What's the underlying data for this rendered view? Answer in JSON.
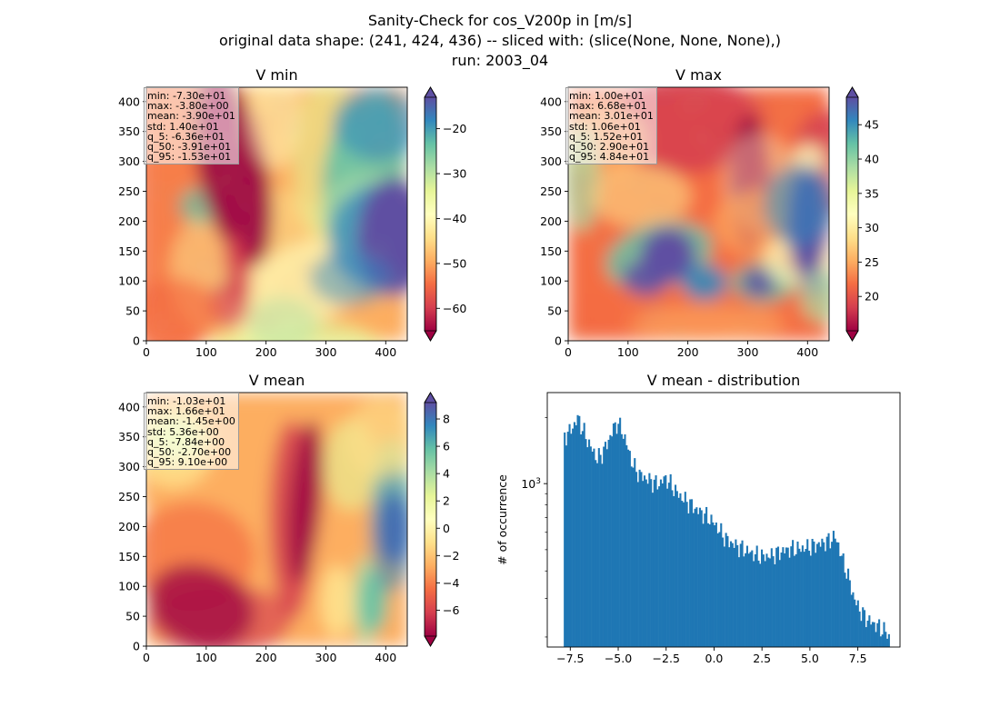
{
  "figure": {
    "title_lines": [
      "Sanity-Check for cos_V200p in [m/s]",
      "original data shape: (241, 424, 436) -- sliced with: (slice(None, None, None),)",
      "run: 2003_04"
    ]
  },
  "colormap": "Spectral",
  "chart_data": [
    {
      "type": "heatmap",
      "title": "V min",
      "xlim": [
        0,
        436
      ],
      "ylim": [
        0,
        424
      ],
      "xticks": [
        0,
        100,
        200,
        300,
        400
      ],
      "yticks": [
        0,
        50,
        100,
        150,
        200,
        250,
        300,
        350,
        400
      ],
      "colorbar": {
        "range": [
          -65,
          -13
        ],
        "ticks": [
          -60,
          -50,
          -40,
          -30,
          -20
        ],
        "extend": "both"
      },
      "stats": [
        "min: -7.30e+01",
        "max: -3.80e+00",
        "mean: -3.90e+01",
        "std: 1.40e+01",
        "q_5: -6.36e+01",
        "q_50: -3.91e+01",
        "q_95: -1.53e+01"
      ]
    },
    {
      "type": "heatmap",
      "title": "V max",
      "xlim": [
        0,
        436
      ],
      "ylim": [
        0,
        424
      ],
      "xticks": [
        0,
        100,
        200,
        300,
        400
      ],
      "yticks": [
        0,
        50,
        100,
        150,
        200,
        250,
        300,
        350,
        400
      ],
      "colorbar": {
        "range": [
          15,
          49
        ],
        "ticks": [
          20,
          25,
          30,
          35,
          40,
          45
        ],
        "extend": "both"
      },
      "stats": [
        "min: 1.00e+01",
        "max: 6.68e+01",
        "mean: 3.01e+01",
        "std: 1.06e+01",
        "q_5: 1.52e+01",
        "q_50: 2.90e+01",
        "q_95: 4.84e+01"
      ]
    },
    {
      "type": "heatmap",
      "title": "V mean",
      "xlim": [
        0,
        436
      ],
      "ylim": [
        0,
        424
      ],
      "xticks": [
        0,
        100,
        200,
        300,
        400
      ],
      "yticks": [
        0,
        50,
        100,
        150,
        200,
        250,
        300,
        350,
        400
      ],
      "colorbar": {
        "range": [
          -7.9,
          9.2
        ],
        "ticks": [
          -6,
          -4,
          -2,
          0,
          2,
          4,
          6,
          8
        ],
        "extend": "both"
      },
      "stats": [
        "min: -1.03e+01",
        "max: 1.66e+01",
        "mean: -1.45e+00",
        "std: 5.36e+00",
        "q_5: -7.84e+00",
        "q_50: -2.70e+00",
        "q_95: 9.10e+00"
      ]
    },
    {
      "type": "bar",
      "subtype": "histogram",
      "title": "V mean - distribution",
      "ylabel": "# of occurrence",
      "yscale": "log",
      "xlim": [
        -8.7,
        9.7
      ],
      "ylim": [
        180,
        2600
      ],
      "xticks": [
        -7.5,
        -5.0,
        -2.5,
        0.0,
        2.5,
        5.0,
        7.5
      ],
      "xticklabels": [
        "−7.5",
        "−5.0",
        "−2.5",
        "0.0",
        "2.5",
        "5.0",
        "7.5"
      ],
      "yticks": [
        1000
      ],
      "color": "#1f77b4",
      "bin_start": -7.84,
      "bin_width": 0.085,
      "anchors": [
        [
          -7.84,
          1650
        ],
        [
          -7.6,
          1700
        ],
        [
          -7.3,
          1850
        ],
        [
          -7.1,
          2000
        ],
        [
          -6.9,
          1800
        ],
        [
          -6.7,
          1650
        ],
        [
          -6.5,
          1500
        ],
        [
          -6.3,
          1400
        ],
        [
          -6.1,
          1300
        ],
        [
          -5.9,
          1350
        ],
        [
          -5.6,
          1500
        ],
        [
          -5.3,
          1750
        ],
        [
          -5.05,
          1900
        ],
        [
          -4.8,
          1750
        ],
        [
          -4.6,
          1550
        ],
        [
          -4.4,
          1350
        ],
        [
          -4.2,
          1200
        ],
        [
          -3.9,
          1100
        ],
        [
          -3.5,
          1050
        ],
        [
          -3.0,
          1000
        ],
        [
          -2.8,
          1000
        ],
        [
          -2.6,
          1060
        ],
        [
          -2.4,
          1030
        ],
        [
          -2.1,
          950
        ],
        [
          -1.8,
          880
        ],
        [
          -1.5,
          840
        ],
        [
          -1.2,
          800
        ],
        [
          -0.9,
          760
        ],
        [
          -0.6,
          730
        ],
        [
          -0.3,
          700
        ],
        [
          0.0,
          660
        ],
        [
          0.3,
          610
        ],
        [
          0.6,
          560
        ],
        [
          1.0,
          530
        ],
        [
          1.5,
          505
        ],
        [
          2.0,
          480
        ],
        [
          2.5,
          465
        ],
        [
          3.0,
          470
        ],
        [
          3.5,
          490
        ],
        [
          4.0,
          505
        ],
        [
          4.5,
          505
        ],
        [
          5.0,
          515
        ],
        [
          5.5,
          530
        ],
        [
          6.0,
          550
        ],
        [
          6.3,
          575
        ],
        [
          6.5,
          520
        ],
        [
          6.7,
          450
        ],
        [
          6.9,
          400
        ],
        [
          7.1,
          350
        ],
        [
          7.3,
          300
        ],
        [
          7.6,
          265
        ],
        [
          8.0,
          240
        ],
        [
          8.5,
          225
        ],
        [
          9.0,
          210
        ],
        [
          9.1,
          200
        ]
      ]
    }
  ]
}
